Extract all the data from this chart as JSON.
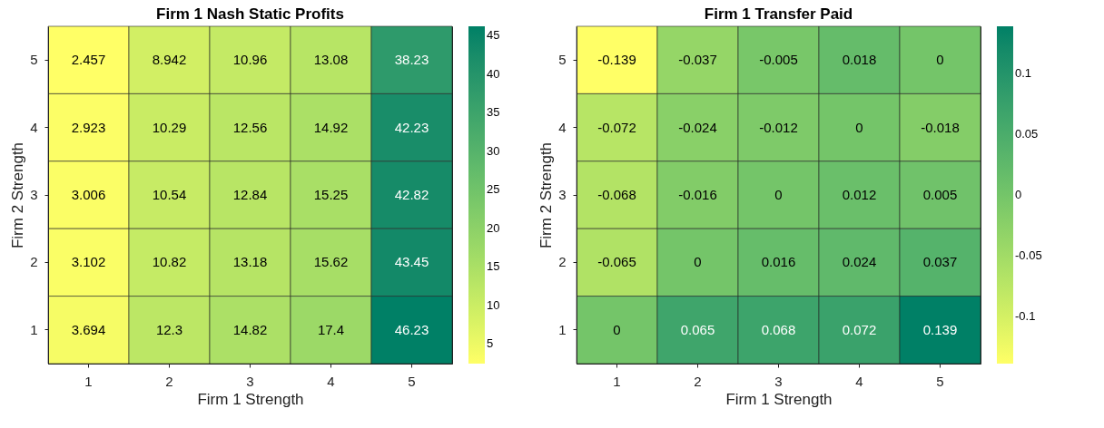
{
  "chart_data": [
    {
      "type": "heatmap",
      "title": "Firm 1 Nash Static Profits",
      "xlabel": "Firm 1 Strength",
      "ylabel": "Firm 2 Strength",
      "categories": [
        "1",
        "2",
        "3",
        "4",
        "5"
      ],
      "y_categories": [
        "5",
        "4",
        "3",
        "2",
        "1"
      ],
      "cells": [
        [
          2.457,
          8.942,
          10.96,
          13.08,
          38.23
        ],
        [
          2.923,
          10.29,
          12.56,
          14.92,
          42.23
        ],
        [
          3.006,
          10.54,
          12.84,
          15.25,
          42.82
        ],
        [
          3.102,
          10.82,
          13.18,
          15.62,
          43.45
        ],
        [
          3.694,
          12.3,
          14.82,
          17.4,
          46.23
        ]
      ],
      "clim": [
        2.457,
        46.23
      ],
      "cticks": [
        5,
        10,
        15,
        20,
        25,
        30,
        35,
        40,
        45
      ],
      "data_labels": true
    },
    {
      "type": "heatmap",
      "title": "Firm 1 Transfer Paid",
      "xlabel": "Firm 1 Strength",
      "ylabel": "Firm 2 Strength",
      "categories": [
        "1",
        "2",
        "3",
        "4",
        "5"
      ],
      "y_categories": [
        "5",
        "4",
        "3",
        "2",
        "1"
      ],
      "cells": [
        [
          -0.139,
          -0.037,
          -0.005,
          0.018,
          0
        ],
        [
          -0.072,
          -0.024,
          -0.012,
          0,
          -0.018
        ],
        [
          -0.068,
          -0.016,
          0,
          0.012,
          0.005
        ],
        [
          -0.065,
          0,
          0.016,
          0.024,
          0.037
        ],
        [
          0,
          0.065,
          0.068,
          0.072,
          0.139
        ]
      ],
      "clim": [
        -0.139,
        0.139
      ],
      "cticks": [
        -0.1,
        -0.05,
        0,
        0.05,
        0.1
      ],
      "data_labels": true
    }
  ]
}
